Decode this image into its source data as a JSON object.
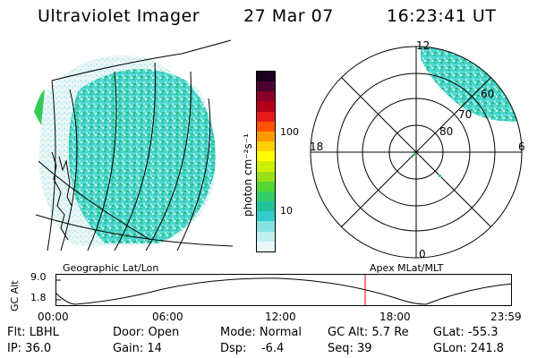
{
  "header": {
    "instrument": "Ultraviolet Imager",
    "date": "27 Mar 07",
    "time": "16:23:41 UT"
  },
  "colorbar": {
    "label": "photon cm⁻²s⁻¹",
    "ticks": [
      "100",
      "10"
    ],
    "colors": [
      "#e6f7f7",
      "#bfeeee",
      "#86e2e2",
      "#33cccc",
      "#22c29a",
      "#33cc66",
      "#55d633",
      "#99e01a",
      "#ccee00",
      "#ffff00",
      "#ffd200",
      "#ff9900",
      "#ff5500",
      "#e61a1a",
      "#b3001a",
      "#88002a",
      "#4d0033",
      "#1a001a"
    ]
  },
  "polar": {
    "ring_labels": [
      "60",
      "70",
      "80"
    ],
    "clock_labels": {
      "top": "12",
      "right": "6",
      "bottom": "0",
      "left": "18"
    }
  },
  "strip": {
    "ylabel": "GC Alt",
    "ytick_top": "9.0",
    "ytick_bottom": "1.8",
    "left_caption": "Geographic Lat/Lon",
    "right_caption": "Apex MLat/MLT",
    "xticks": [
      "00:00",
      "06:00",
      "12:00",
      "18:00",
      "23:59"
    ]
  },
  "info": {
    "flt": "Flt: LBHL",
    "ip": "IP: 36.0",
    "door": "Door: Open",
    "gain": "Gain: 14",
    "mode": "Mode: Normal",
    "dsp": "Dsp:    -6.4",
    "gcalt": "GC Alt: 5.7 Re",
    "seq": "Seq: 39",
    "glat": "GLat: -55.3",
    "glon": "GLon: 241.8"
  }
}
